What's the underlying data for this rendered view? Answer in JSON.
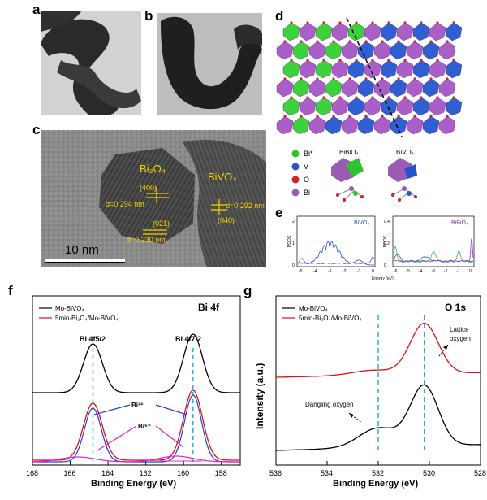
{
  "panels": {
    "a": "a",
    "b": "b",
    "c": "c",
    "d": "d",
    "e": "e",
    "f": "f",
    "g": "g"
  },
  "tem_c": {
    "phase1": "Bi₂O₄",
    "phase2": "BiVO₄",
    "plane_400": "(400)",
    "d1": "d=0.294 nm",
    "plane_021": "(021)",
    "d2": "d=0.230 nm",
    "d3": "d=0.292 nm",
    "plane_040": "(040)",
    "scale": "10 nm"
  },
  "legend_d": {
    "items": [
      {
        "label": "Bi*",
        "color": "#2fc42f"
      },
      {
        "label": "V",
        "color": "#2456c9"
      },
      {
        "label": "O",
        "color": "#d4202a"
      },
      {
        "label": "Bi",
        "color": "#9b5bb5"
      }
    ],
    "title_left": "BiBiO₄",
    "title_right": "BiVO₄"
  },
  "pdos_e": {
    "ylabel": "PDOS",
    "xlabel": "Energy (eV)",
    "left_title": "BiVO₄",
    "right_title": "BiBiO₄",
    "left_yticks": [
      "2",
      "1",
      "0"
    ],
    "right_yticks": [
      "0.4",
      "0.2",
      "0"
    ],
    "left_xticks": [
      "-5",
      "-4",
      "-3",
      "-2",
      "-1",
      "0"
    ],
    "right_xticks": [
      "-6",
      "-5",
      "-4",
      "-3",
      "-2",
      "-1",
      "0"
    ]
  },
  "chart_data": [
    {
      "panel": "f",
      "type": "line",
      "title": "Bi 4f",
      "xlabel": "Binding Energy (eV)",
      "xlim": [
        168,
        157
      ],
      "xticks": [
        168,
        166,
        164,
        162,
        160,
        158
      ],
      "series": [
        {
          "name": "Mo-BiVO₄",
          "color": "#000000"
        },
        {
          "name": "5min-Bi₂O₄/Mo-BiVO₄",
          "color": "#e01010"
        }
      ],
      "peaks": {
        "Bi 4f5/2": 164.8,
        "Bi 4f7/2": 159.5
      },
      "annotations": [
        "Bi 4f5/2",
        "Bi 4f7/2",
        "Bi³⁺",
        "Bi⁵⁺"
      ]
    },
    {
      "panel": "g",
      "type": "line",
      "title": "O 1s",
      "xlabel": "Binding Energy (eV)",
      "ylabel": "Intensity (a.u.)",
      "xlim": [
        536,
        528
      ],
      "xticks": [
        536,
        534,
        532,
        530,
        528
      ],
      "series": [
        {
          "name": "Mo-BiVO₄",
          "color": "#000000"
        },
        {
          "name": "5min-Bi₂O₄/Mo-BiVO₄",
          "color": "#e01010"
        }
      ],
      "peaks": {
        "Dangling oxygen": 532.0,
        "Lattice oxygen": 530.2
      },
      "annotations": [
        "Dangling oxygen",
        "Lattice oxygen"
      ]
    }
  ]
}
